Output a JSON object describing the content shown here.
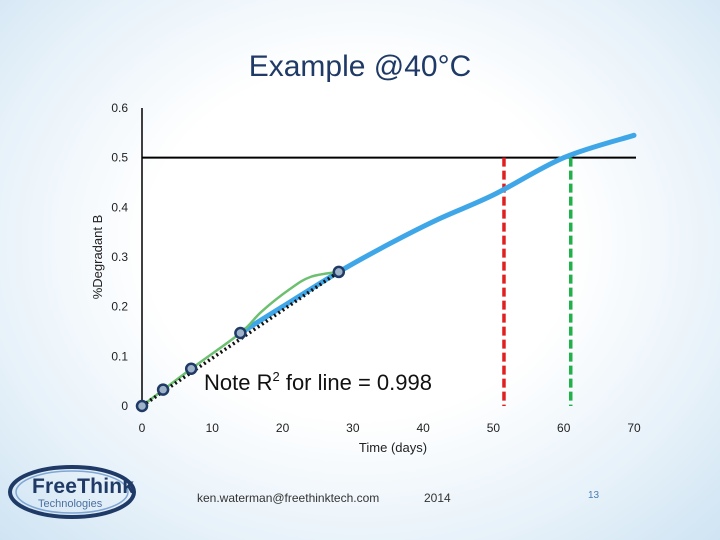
{
  "slide": {
    "title": "Example @40°C",
    "footer_email": "ken.waterman@freethinktech.com",
    "footer_year": "2014",
    "page_number": "13",
    "logo_brand": "FreeThink",
    "logo_sub": "Technologies"
  },
  "chart_data": {
    "type": "line",
    "title": "Example @40°C",
    "xlabel": "Time (days)",
    "ylabel": "%Degradant B",
    "xlim": [
      0,
      70
    ],
    "ylim": [
      0,
      0.6
    ],
    "x_ticks": [
      "0",
      "10",
      "20",
      "30",
      "40",
      "50",
      "60",
      "70"
    ],
    "y_ticks": [
      "0",
      "0.1",
      "0.2",
      "0.3",
      "0.4",
      "0.5",
      "0.6"
    ],
    "annotation": {
      "text": "Note R",
      "sup": "2",
      "tail": " for line = 0.998"
    },
    "series": [
      {
        "color": "#1f3a66",
        "style": "points",
        "x": [
          0,
          3,
          7,
          14,
          28
        ],
        "y": [
          0,
          0.033,
          0.075,
          0.147,
          0.27
        ]
      },
      {
        "color": "#111111",
        "style": "dotted-fit",
        "x": [
          0,
          28
        ],
        "y": [
          0,
          0.27
        ]
      },
      {
        "color": "#6cc070",
        "style": "smooth-fit",
        "x": [
          0,
          7,
          14,
          17,
          21,
          24,
          28
        ],
        "y": [
          0,
          0.075,
          0.147,
          0.19,
          0.235,
          0.26,
          0.27
        ]
      },
      {
        "color": "#3fa7e8",
        "style": "projection",
        "x": [
          14,
          20,
          28,
          35,
          42,
          50,
          60,
          70
        ],
        "y": [
          0.147,
          0.2,
          0.27,
          0.325,
          0.375,
          0.425,
          0.5,
          0.545
        ]
      }
    ],
    "reference_lines": [
      {
        "orientation": "horizontal",
        "y": 0.5,
        "color": "#000000"
      },
      {
        "orientation": "vertical",
        "x": 51.5,
        "y_top": 0.5,
        "color": "#e02020",
        "dash": true
      },
      {
        "orientation": "vertical",
        "x": 61,
        "y_top": 0.5,
        "color": "#22b04a",
        "dash": true
      }
    ]
  }
}
